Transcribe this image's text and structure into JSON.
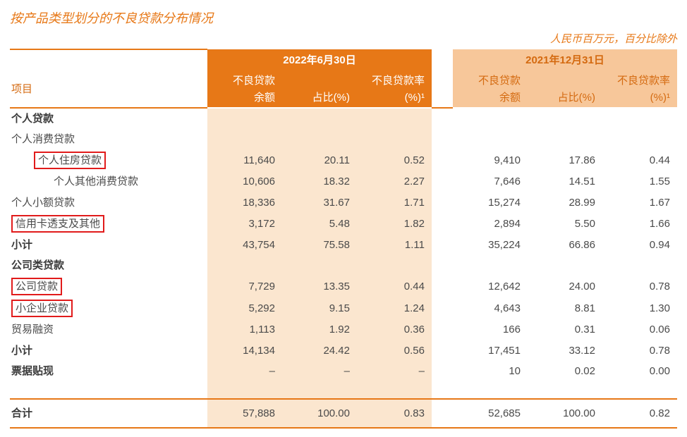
{
  "title": "按产品类型划分的不良贷款分布情况",
  "unit_note": "人民币百万元，百分比除外",
  "header": {
    "item_label": "项目",
    "periods": [
      {
        "label": "2022年6月30日",
        "emphasis": "primary"
      },
      {
        "label": "2021年12月31日",
        "emphasis": "secondary"
      }
    ],
    "metrics": [
      {
        "line1": "不良贷款",
        "line2": "余额"
      },
      {
        "line1": "",
        "line2": "占比(%)"
      },
      {
        "line1": "不良贷款率",
        "line2": "(%)¹"
      }
    ]
  },
  "rows": [
    {
      "label": "个人贷款",
      "indent": 1,
      "bold": true,
      "redbox": false,
      "cur": [
        "",
        "",
        ""
      ],
      "prev": [
        "",
        "",
        ""
      ]
    },
    {
      "label": "个人消费贷款",
      "indent": 1,
      "bold": false,
      "redbox": false,
      "cur": [
        "",
        "",
        ""
      ],
      "prev": [
        "",
        "",
        ""
      ]
    },
    {
      "label": "个人住房贷款",
      "indent": 2,
      "bold": false,
      "redbox": true,
      "cur": [
        "11,640",
        "20.11",
        "0.52"
      ],
      "prev": [
        "9,410",
        "17.86",
        "0.44"
      ]
    },
    {
      "label": "个人其他消费贷款",
      "indent": 3,
      "bold": false,
      "redbox": false,
      "cur": [
        "10,606",
        "18.32",
        "2.27"
      ],
      "prev": [
        "7,646",
        "14.51",
        "1.55"
      ]
    },
    {
      "label": "个人小额贷款",
      "indent": 1,
      "bold": false,
      "redbox": false,
      "cur": [
        "18,336",
        "31.67",
        "1.71"
      ],
      "prev": [
        "15,274",
        "28.99",
        "1.67"
      ]
    },
    {
      "label": "信用卡透支及其他",
      "indent": 1,
      "bold": false,
      "redbox": true,
      "cur": [
        "3,172",
        "5.48",
        "1.82"
      ],
      "prev": [
        "2,894",
        "5.50",
        "1.66"
      ]
    },
    {
      "label": "小计",
      "indent": 1,
      "bold": true,
      "redbox": false,
      "cur": [
        "43,754",
        "75.58",
        "1.11"
      ],
      "prev": [
        "35,224",
        "66.86",
        "0.94"
      ]
    },
    {
      "label": "公司类贷款",
      "indent": 1,
      "bold": true,
      "redbox": false,
      "cur": [
        "",
        "",
        ""
      ],
      "prev": [
        "",
        "",
        ""
      ]
    },
    {
      "label": "公司贷款",
      "indent": 1,
      "bold": false,
      "redbox": true,
      "cur": [
        "7,729",
        "13.35",
        "0.44"
      ],
      "prev": [
        "12,642",
        "24.00",
        "0.78"
      ]
    },
    {
      "label": "小企业贷款",
      "indent": 1,
      "bold": false,
      "redbox": true,
      "cur": [
        "5,292",
        "9.15",
        "1.24"
      ],
      "prev": [
        "4,643",
        "8.81",
        "1.30"
      ]
    },
    {
      "label": "贸易融资",
      "indent": 1,
      "bold": false,
      "redbox": false,
      "cur": [
        "1,113",
        "1.92",
        "0.36"
      ],
      "prev": [
        "166",
        "0.31",
        "0.06"
      ]
    },
    {
      "label": "小计",
      "indent": 1,
      "bold": true,
      "redbox": false,
      "cur": [
        "14,134",
        "24.42",
        "0.56"
      ],
      "prev": [
        "17,451",
        "33.12",
        "0.78"
      ]
    },
    {
      "label": "票据贴现",
      "indent": 1,
      "bold": true,
      "redbox": false,
      "cur": [
        "–",
        "–",
        "–"
      ],
      "prev": [
        "10",
        "0.02",
        "0.00"
      ]
    }
  ],
  "total": {
    "label": "合计",
    "cur": [
      "57,888",
      "100.00",
      "0.83"
    ],
    "prev": [
      "52,685",
      "100.00",
      "0.82"
    ]
  },
  "colors": {
    "accent": "#e77817",
    "accent_light": "#f7c79a",
    "shade": "#fbe6cf",
    "red": "#e11b1b",
    "text": "#4a4a4a"
  }
}
